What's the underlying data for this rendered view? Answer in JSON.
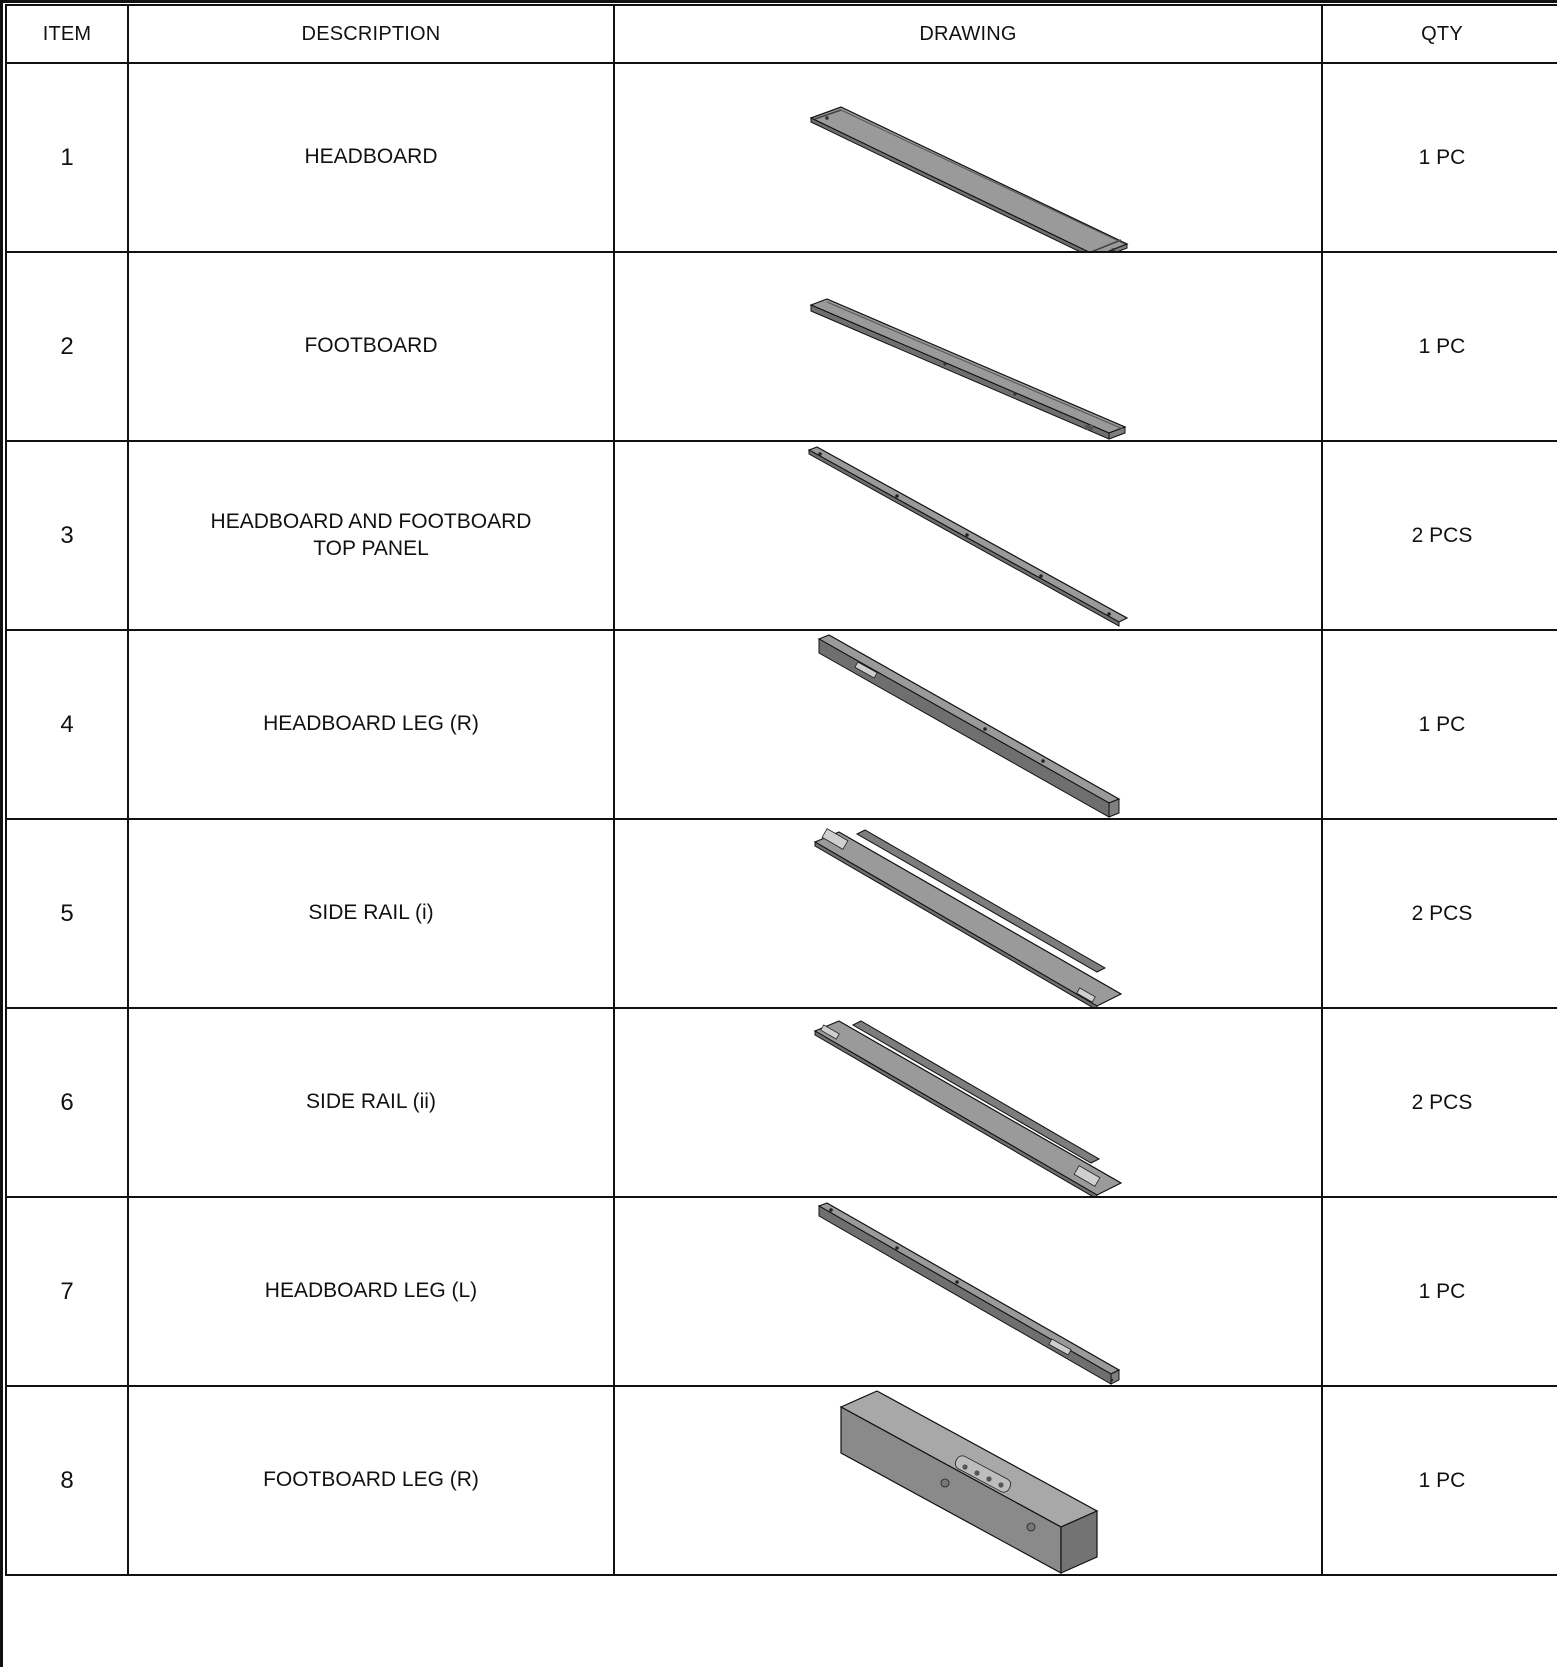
{
  "table": {
    "headers": {
      "item": "ITEM",
      "description": "DESCRIPTION",
      "drawing": "DRAWING",
      "qty": "QTY"
    },
    "rows": [
      {
        "item": "1",
        "description": "HEADBOARD",
        "qty": "1 PC",
        "drawing_icon": "headboard-panel-icon"
      },
      {
        "item": "2",
        "description": "FOOTBOARD",
        "qty": "1 PC",
        "drawing_icon": "footboard-panel-icon"
      },
      {
        "item": "3",
        "description": "HEADBOARD AND FOOTBOARD\nTOP PANEL",
        "qty": "2 PCS",
        "drawing_icon": "top-panel-bar-icon"
      },
      {
        "item": "4",
        "description": "HEADBOARD LEG (R)",
        "qty": "1 PC",
        "drawing_icon": "leg-bar-icon"
      },
      {
        "item": "5",
        "description": "SIDE RAIL (i)",
        "qty": "2 PCS",
        "drawing_icon": "side-rail-icon"
      },
      {
        "item": "6",
        "description": "SIDE RAIL (ii)",
        "qty": "2 PCS",
        "drawing_icon": "side-rail-icon"
      },
      {
        "item": "7",
        "description": "HEADBOARD LEG (L)",
        "qty": "1 PC",
        "drawing_icon": "leg-bar-icon"
      },
      {
        "item": "8",
        "description": "FOOTBOARD LEG (R)",
        "qty": "1 PC",
        "drawing_icon": "footboard-leg-block-icon"
      }
    ]
  },
  "colors": {
    "line": "#111111",
    "part_fill": "#9a9a9a",
    "part_dark": "#6f6f6f",
    "part_light": "#c4c4c4"
  }
}
